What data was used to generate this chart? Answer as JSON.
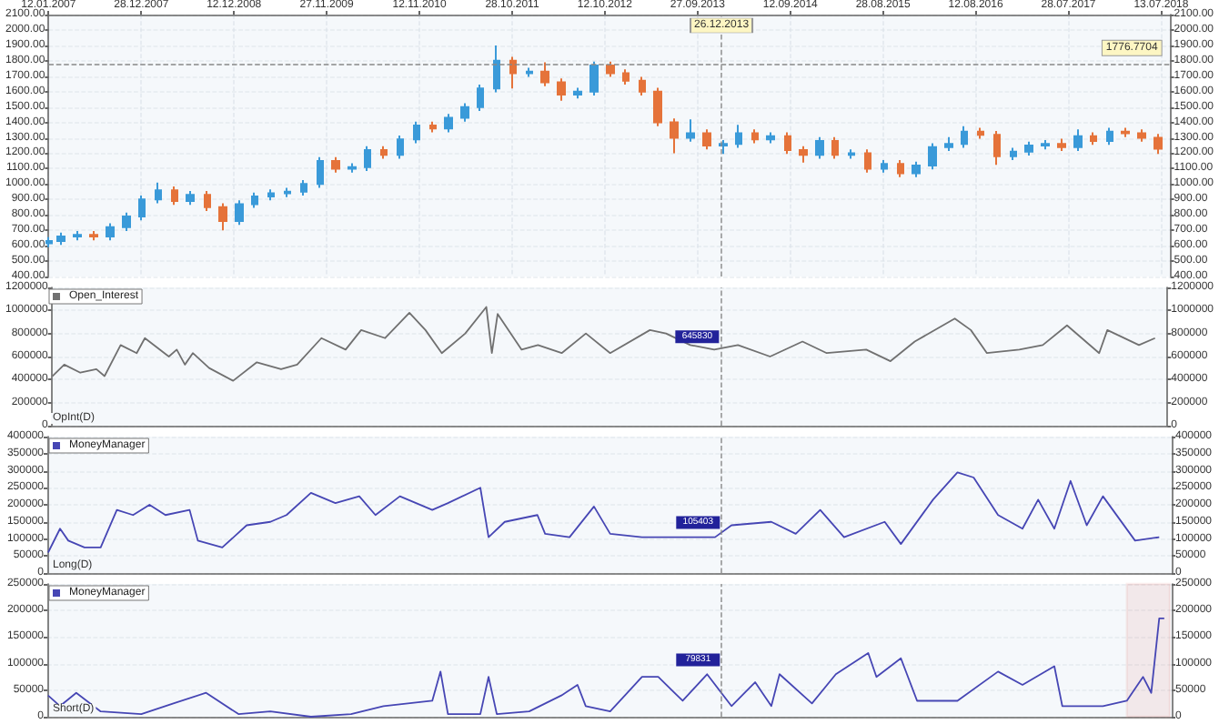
{
  "chart_data": [
    {
      "type": "candlestick",
      "x": [
        "2007-01-15",
        "2007-03",
        "2007-05",
        "2007-07",
        "2007-09",
        "2007-11",
        "2008-01",
        "2008-03",
        "2008-05",
        "2008-07",
        "2008-09",
        "2008-11",
        "2009-01",
        "2009-03",
        "2009-05",
        "2009-07",
        "2009-09",
        "2009-11",
        "2010-01",
        "2010-03",
        "2010-05",
        "2010-07",
        "2010-09",
        "2010-11",
        "2011-01",
        "2011-03",
        "2011-05",
        "2011-07",
        "2011-09",
        "2011-11",
        "2012-01",
        "2012-03",
        "2012-05",
        "2012-07",
        "2012-09",
        "2012-11",
        "2013-01",
        "2013-03",
        "2013-05",
        "2013-07",
        "2013-09",
        "2013-11",
        "2014-01",
        "2014-03",
        "2014-05",
        "2014-07",
        "2014-09",
        "2014-11",
        "2015-01",
        "2015-03",
        "2015-05",
        "2015-07",
        "2015-09",
        "2015-11",
        "2016-01",
        "2016-03",
        "2016-05",
        "2016-07",
        "2016-09",
        "2016-11",
        "2017-01",
        "2017-03",
        "2017-05",
        "2017-07",
        "2017-09",
        "2017-11",
        "2018-01",
        "2018-03",
        "2018-05",
        "2018-07"
      ],
      "ohlc": [
        [
          615,
          655,
          590,
          630
        ],
        [
          630,
          685,
          605,
          660
        ],
        [
          660,
          695,
          635,
          670
        ],
        [
          670,
          695,
          635,
          660
        ],
        [
          660,
          745,
          635,
          720
        ],
        [
          720,
          815,
          695,
          790
        ],
        [
          790,
          925,
          765,
          900
        ],
        [
          900,
          1010,
          875,
          960
        ],
        [
          960,
          985,
          865,
          890
        ],
        [
          890,
          955,
          865,
          930
        ],
        [
          930,
          955,
          825,
          850
        ],
        [
          850,
          875,
          700,
          760
        ],
        [
          760,
          895,
          735,
          870
        ],
        [
          870,
          945,
          845,
          920
        ],
        [
          920,
          965,
          895,
          940
        ],
        [
          940,
          975,
          915,
          950
        ],
        [
          950,
          1025,
          925,
          1000
        ],
        [
          1000,
          1175,
          975,
          1150
        ],
        [
          1150,
          1175,
          1075,
          1100
        ],
        [
          1100,
          1135,
          1075,
          1110
        ],
        [
          1110,
          1245,
          1085,
          1220
        ],
        [
          1220,
          1245,
          1165,
          1190
        ],
        [
          1190,
          1315,
          1165,
          1290
        ],
        [
          1290,
          1405,
          1265,
          1380
        ],
        [
          1380,
          1405,
          1335,
          1360
        ],
        [
          1360,
          1455,
          1335,
          1430
        ],
        [
          1430,
          1525,
          1405,
          1500
        ],
        [
          1500,
          1645,
          1475,
          1620
        ],
        [
          1620,
          1900,
          1595,
          1800
        ],
        [
          1800,
          1825,
          1620,
          1720
        ],
        [
          1720,
          1755,
          1695,
          1730
        ],
        [
          1730,
          1790,
          1635,
          1660
        ],
        [
          1660,
          1685,
          1540,
          1580
        ],
        [
          1580,
          1625,
          1555,
          1600
        ],
        [
          1600,
          1795,
          1575,
          1770
        ],
        [
          1770,
          1795,
          1695,
          1720
        ],
        [
          1720,
          1745,
          1645,
          1670
        ],
        [
          1670,
          1695,
          1575,
          1600
        ],
        [
          1600,
          1625,
          1375,
          1400
        ],
        [
          1400,
          1425,
          1200,
          1300
        ],
        [
          1300,
          1420,
          1275,
          1330
        ],
        [
          1330,
          1355,
          1225,
          1250
        ],
        [
          1250,
          1285,
          1195,
          1260
        ],
        [
          1260,
          1385,
          1235,
          1330
        ],
        [
          1330,
          1355,
          1265,
          1290
        ],
        [
          1290,
          1335,
          1265,
          1310
        ],
        [
          1310,
          1335,
          1195,
          1220
        ],
        [
          1220,
          1245,
          1140,
          1190
        ],
        [
          1190,
          1305,
          1165,
          1280
        ],
        [
          1280,
          1305,
          1165,
          1190
        ],
        [
          1190,
          1225,
          1165,
          1200
        ],
        [
          1200,
          1225,
          1075,
          1100
        ],
        [
          1100,
          1155,
          1075,
          1130
        ],
        [
          1130,
          1155,
          1045,
          1070
        ],
        [
          1070,
          1145,
          1045,
          1120
        ],
        [
          1120,
          1265,
          1095,
          1240
        ],
        [
          1240,
          1305,
          1215,
          1260
        ],
        [
          1260,
          1375,
          1235,
          1340
        ],
        [
          1340,
          1365,
          1295,
          1320
        ],
        [
          1320,
          1345,
          1125,
          1180
        ],
        [
          1180,
          1235,
          1155,
          1210
        ],
        [
          1210,
          1275,
          1185,
          1250
        ],
        [
          1250,
          1285,
          1225,
          1260
        ],
        [
          1260,
          1295,
          1215,
          1240
        ],
        [
          1240,
          1355,
          1215,
          1310
        ],
        [
          1310,
          1335,
          1255,
          1280
        ],
        [
          1280,
          1365,
          1255,
          1340
        ],
        [
          1340,
          1365,
          1305,
          1330
        ],
        [
          1330,
          1355,
          1275,
          1300
        ],
        [
          1300,
          1325,
          1195,
          1230
        ]
      ],
      "colors": [
        "#3a9ad9",
        "#3a9ad9",
        "#3a9ad9",
        "#e5733a",
        "#3a9ad9",
        "#3a9ad9",
        "#3a9ad9",
        "#3a9ad9",
        "#e5733a",
        "#3a9ad9",
        "#e5733a",
        "#e5733a",
        "#3a9ad9",
        "#3a9ad9",
        "#3a9ad9",
        "#3a9ad9",
        "#3a9ad9",
        "#3a9ad9",
        "#e5733a",
        "#3a9ad9",
        "#3a9ad9",
        "#e5733a",
        "#3a9ad9",
        "#3a9ad9",
        "#e5733a",
        "#3a9ad9",
        "#3a9ad9",
        "#3a9ad9",
        "#3a9ad9",
        "#e5733a",
        "#3a9ad9",
        "#e5733a",
        "#e5733a",
        "#3a9ad9",
        "#3a9ad9",
        "#e5733a",
        "#e5733a",
        "#e5733a",
        "#e5733a",
        "#e5733a",
        "#3a9ad9",
        "#e5733a",
        "#3a9ad9",
        "#3a9ad9",
        "#e5733a",
        "#3a9ad9",
        "#e5733a",
        "#e5733a",
        "#3a9ad9",
        "#e5733a",
        "#3a9ad9",
        "#e5733a",
        "#3a9ad9",
        "#e5733a",
        "#3a9ad9",
        "#3a9ad9",
        "#3a9ad9",
        "#3a9ad9",
        "#e5733a",
        "#e5733a",
        "#3a9ad9",
        "#3a9ad9",
        "#3a9ad9",
        "#e5733a",
        "#3a9ad9",
        "#e5733a",
        "#3a9ad9",
        "#e5733a",
        "#e5733a",
        "#e5733a"
      ],
      "xlim": [
        "2007-01-12",
        "2018-08-17"
      ],
      "xticks": [
        {
          "value": "2007-01-12",
          "label": "12.01.2007"
        },
        {
          "value": "2007-12-28",
          "label": "28.12.2007"
        },
        {
          "value": "2008-12-12",
          "label": "12.12.2008"
        },
        {
          "value": "2009-11-27",
          "label": "27.11.2009"
        },
        {
          "value": "2010-11-12",
          "label": "12.11.2010"
        },
        {
          "value": "2011-10-28",
          "label": "28.10.2011"
        },
        {
          "value": "2012-10-12",
          "label": "12.10.2012"
        },
        {
          "value": "2013-09-27",
          "label": "27.09.2013"
        },
        {
          "value": "2014-09-12",
          "label": "12.09.2014"
        },
        {
          "value": "2015-08-28",
          "label": "28.08.2015"
        },
        {
          "value": "2016-08-12",
          "label": "12.08.2016"
        },
        {
          "value": "2017-07-28",
          "label": "28.07.2017"
        },
        {
          "value": "2018-07-13",
          "label": "13.07.2018"
        }
      ],
      "ylim": [
        400,
        2100
      ],
      "yticks": [
        {
          "value": 400,
          "label": "400.00"
        },
        {
          "value": 500,
          "label": "500.00"
        },
        {
          "value": 600,
          "label": "600.00"
        },
        {
          "value": 700,
          "label": "700.00"
        },
        {
          "value": 800,
          "label": "800.00"
        },
        {
          "value": 900,
          "label": "900.00"
        },
        {
          "value": 1000,
          "label": "1000.00"
        },
        {
          "value": 1100,
          "label": "1100.00"
        },
        {
          "value": 1200,
          "label": "1200.00"
        },
        {
          "value": 1300,
          "label": "1300.00"
        },
        {
          "value": 1400,
          "label": "1400.00"
        },
        {
          "value": 1500,
          "label": "1500.00"
        },
        {
          "value": 1600,
          "label": "1600.00"
        },
        {
          "value": 1700,
          "label": "1700.00"
        },
        {
          "value": 1800,
          "label": "1800.00"
        },
        {
          "value": 1900,
          "label": "1900.00"
        },
        {
          "value": 2000,
          "label": "2000.00"
        },
        {
          "value": 2100,
          "label": "2100.00"
        }
      ],
      "y2lim": [
        400,
        2100
      ],
      "y2ticks": [
        {
          "value": 400,
          "label": "400.00"
        },
        {
          "value": 500,
          "label": "500.00"
        },
        {
          "value": 600,
          "label": "600.00"
        },
        {
          "value": 700,
          "label": "700.00"
        },
        {
          "value": 800,
          "label": "800.00"
        },
        {
          "value": 900,
          "label": "900.00"
        },
        {
          "value": 1000,
          "label": "1000.00"
        },
        {
          "value": 1100,
          "label": "1100.00"
        },
        {
          "value": 1200,
          "label": "1200.00"
        },
        {
          "value": 1300,
          "label": "1300.00"
        },
        {
          "value": 1400,
          "label": "1400.00"
        },
        {
          "value": 1500,
          "label": "1500.00"
        },
        {
          "value": 1600,
          "label": "1600.00"
        },
        {
          "value": 1700,
          "label": "1700.00"
        },
        {
          "value": 1800,
          "label": "1800.00"
        },
        {
          "value": 1900,
          "label": "1900.00"
        },
        {
          "value": 2000,
          "label": "2000.00"
        },
        {
          "value": 2100,
          "label": "2100.00"
        }
      ],
      "ref_lines": [
        {
          "axis": "y",
          "value": 1776.7704,
          "label": "1776.7704",
          "line_style": "dashed"
        },
        {
          "axis": "x",
          "value": "2013-12-26",
          "label": "26.12.2013",
          "line_style": "dashed"
        }
      ],
      "grid": true
    },
    {
      "type": "line",
      "series": [
        {
          "name": "Open_Interest",
          "color": "#707070",
          "x": [
            "2007-01-15",
            "2007-03",
            "2007-05",
            "2007-07",
            "2007-08",
            "2007-10",
            "2007-12",
            "2008-01",
            "2008-04",
            "2008-05",
            "2008-06",
            "2008-07",
            "2008-09",
            "2008-12",
            "2009-03",
            "2009-06",
            "2009-08",
            "2009-11",
            "2010-02",
            "2010-04",
            "2010-07",
            "2010-10",
            "2010-12",
            "2011-02",
            "2011-05",
            "2011-07-20",
            "2011-08-10",
            "2011-09-01",
            "2011-12",
            "2012-02",
            "2012-05",
            "2012-08",
            "2012-11",
            "2013-04",
            "2013-06",
            "2013-09",
            "2013-12",
            "2014-03",
            "2014-07",
            "2014-11",
            "2015-02",
            "2015-07",
            "2015-10",
            "2016-01",
            "2016-06",
            "2016-08",
            "2016-10",
            "2017-02",
            "2017-05",
            "2017-08",
            "2017-12",
            "2018-01",
            "2018-05",
            "2018-07"
          ],
          "values": [
            430000,
            530000,
            460000,
            490000,
            430000,
            700000,
            630000,
            760000,
            600000,
            660000,
            530000,
            630000,
            500000,
            390000,
            550000,
            490000,
            530000,
            760000,
            660000,
            830000,
            760000,
            980000,
            830000,
            630000,
            800000,
            1030000,
            630000,
            970000,
            660000,
            700000,
            630000,
            800000,
            630000,
            830000,
            800000,
            700000,
            660000,
            700000,
            600000,
            730000,
            630000,
            660000,
            560000,
            730000,
            930000,
            830000,
            630000,
            660000,
            700000,
            870000,
            630000,
            830000,
            700000,
            760000
          ]
        }
      ],
      "xlim": [
        "2007-01-12",
        "2018-08-17"
      ],
      "ylim": [
        0,
        1200000
      ],
      "yticks": [
        0,
        200000,
        400000,
        600000,
        800000,
        1000000,
        1200000
      ],
      "y2lim": [
        0,
        1200000
      ],
      "y2ticks": [
        0,
        200000,
        400000,
        600000,
        800000,
        1000000,
        1200000
      ],
      "ref_lines": [
        {
          "axis": "x",
          "value": "2013-12-26",
          "line_style": "dashed"
        }
      ],
      "annotations": [
        "OpInt(D)",
        {
          "text": "645830",
          "x": "2013-12-26",
          "y": 645830
        }
      ],
      "legend": "top left",
      "grid": true,
      "tick_labels": "y"
    },
    {
      "type": "line",
      "series": [
        {
          "name": "MoneyManager",
          "color": "#4646b4",
          "x": [
            "2007-01-15",
            "2007-03",
            "2007-04",
            "2007-06",
            "2007-08",
            "2007-10",
            "2007-12",
            "2008-02",
            "2008-04",
            "2008-07",
            "2008-08",
            "2008-11",
            "2009-02",
            "2009-05",
            "2009-07",
            "2009-10",
            "2010-01",
            "2010-04",
            "2010-06",
            "2010-09",
            "2011-01",
            "2011-03",
            "2011-07",
            "2011-08",
            "2011-10",
            "2012-02",
            "2012-03",
            "2012-06",
            "2012-09",
            "2012-11",
            "2013-03",
            "2013-06",
            "2013-09",
            "2013-12",
            "2014-02",
            "2014-07",
            "2014-10",
            "2015-01",
            "2015-04",
            "2015-09",
            "2015-11",
            "2016-03",
            "2016-06",
            "2016-08",
            "2016-11",
            "2017-02",
            "2017-04",
            "2017-06",
            "2017-08",
            "2017-10",
            "2017-12",
            "2018-04",
            "2018-07"
          ],
          "values": [
            60000,
            130000,
            95000,
            75000,
            75000,
            185000,
            170000,
            200000,
            170000,
            185000,
            95000,
            75000,
            140000,
            150000,
            170000,
            235000,
            205000,
            225000,
            170000,
            225000,
            185000,
            205000,
            250000,
            105000,
            150000,
            170000,
            115000,
            105000,
            195000,
            115000,
            105000,
            105000,
            105000,
            105000,
            140000,
            150000,
            115000,
            185000,
            105000,
            150000,
            85000,
            215000,
            295000,
            280000,
            170000,
            130000,
            215000,
            130000,
            270000,
            140000,
            225000,
            95000,
            105000
          ]
        }
      ],
      "xlim": [
        "2007-01-12",
        "2018-08-17"
      ],
      "ylim": [
        0,
        400000
      ],
      "yticks": [
        0,
        50000,
        100000,
        150000,
        200000,
        250000,
        300000,
        350000,
        400000
      ],
      "y2lim": [
        0,
        400000
      ],
      "y2ticks": [
        0,
        50000,
        100000,
        150000,
        200000,
        250000,
        300000,
        350000,
        400000
      ],
      "ref_lines": [
        {
          "axis": "x",
          "value": "2013-12-26",
          "line_style": "dashed"
        }
      ],
      "annotations": [
        "Long(D)",
        {
          "text": "105403",
          "x": "2013-12-26",
          "y": 105403
        }
      ],
      "legend": "top left",
      "grid": true,
      "tick_labels": "y"
    },
    {
      "type": "line",
      "series": [
        {
          "name": "MoneyManager",
          "color": "#4646b4",
          "x": [
            "2007-01-15",
            "2007-03",
            "2007-05",
            "2007-08",
            "2008-01",
            "2008-05",
            "2008-09",
            "2009-01",
            "2009-05",
            "2009-10",
            "2010-03",
            "2010-07",
            "2011-01",
            "2011-02",
            "2011-03",
            "2011-07",
            "2011-08",
            "2011-09",
            "2012-01",
            "2012-05",
            "2012-07",
            "2012-08",
            "2012-11",
            "2013-03",
            "2013-05",
            "2013-08",
            "2013-11",
            "2014-02",
            "2014-05",
            "2014-07",
            "2014-08",
            "2014-12",
            "2015-03",
            "2015-07",
            "2015-08",
            "2015-11",
            "2016-01",
            "2016-06",
            "2016-11",
            "2017-02",
            "2017-06",
            "2017-07",
            "2017-12",
            "2018-03",
            "2018-05",
            "2018-06",
            "2018-07",
            "2018-07-20"
          ],
          "values": [
            40000,
            20000,
            45000,
            10000,
            5000,
            25000,
            45000,
            5000,
            10000,
            0,
            5000,
            20000,
            30000,
            85000,
            5000,
            5000,
            75000,
            5000,
            10000,
            40000,
            60000,
            20000,
            10000,
            75000,
            75000,
            30000,
            80000,
            20000,
            65000,
            20000,
            80000,
            25000,
            80000,
            120000,
            75000,
            110000,
            30000,
            30000,
            85000,
            60000,
            95000,
            20000,
            20000,
            30000,
            75000,
            45000,
            185000,
            185000
          ]
        }
      ],
      "xlim": [
        "2007-01-12",
        "2018-08-17"
      ],
      "ylim": [
        0,
        250000
      ],
      "yticks": [
        0,
        50000,
        100000,
        150000,
        200000,
        250000
      ],
      "y2lim": [
        0,
        250000
      ],
      "y2ticks": [
        0,
        50000,
        100000,
        150000,
        200000,
        250000
      ],
      "ref_lines": [
        {
          "axis": "x",
          "value": "2013-12-26",
          "line_style": "dashed"
        }
      ],
      "bands": [
        {
          "axis": "x",
          "from": "2018-03-01",
          "to": "2018-08-10",
          "color": "#d9302c"
        }
      ],
      "annotations": [
        "Short(D)",
        {
          "text": "79831",
          "x": "2013-12-26",
          "y": 79831
        }
      ],
      "legend": "top left",
      "grid": true,
      "tick_labels": "y"
    }
  ]
}
